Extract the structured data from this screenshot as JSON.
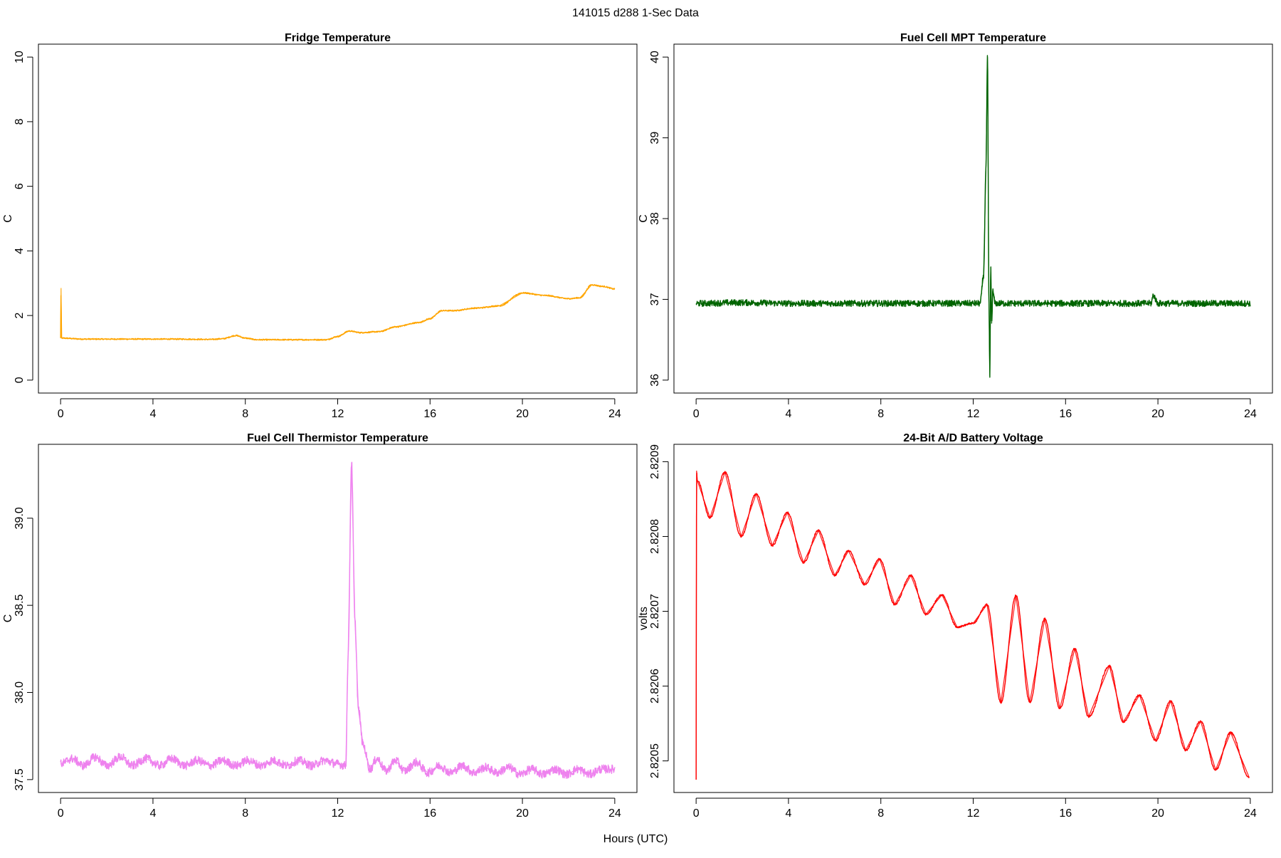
{
  "figure": {
    "title": "141015   d288   1-Sec Data",
    "xlabel": "Hours (UTC)"
  },
  "chart_data": [
    {
      "type": "line",
      "title": "Fridge Temperature",
      "xlabel": "Hours (UTC)",
      "ylabel": "C",
      "color": "#FFA500",
      "xlim": [
        0,
        24
      ],
      "ylim": [
        0,
        10
      ],
      "xticks": [
        0,
        4,
        8,
        12,
        16,
        20,
        24
      ],
      "yticks": [
        0,
        2,
        4,
        6,
        8,
        10
      ],
      "ytick_labels": [
        "0",
        "2",
        "4",
        "6",
        "8",
        "10"
      ],
      "noise": 0.02,
      "x": [
        0,
        0.02,
        0.04,
        1,
        3,
        5,
        6.5,
        7,
        7.6,
        8,
        8.5,
        10,
        11.5,
        12,
        12.5,
        13,
        13.8,
        14.5,
        15.5,
        16,
        16.5,
        17,
        18,
        19,
        20,
        21,
        22,
        22.5,
        23,
        23.5,
        24
      ],
      "y": [
        1.3,
        2.85,
        1.3,
        1.27,
        1.27,
        1.27,
        1.26,
        1.28,
        1.38,
        1.3,
        1.25,
        1.25,
        1.25,
        1.35,
        1.52,
        1.47,
        1.5,
        1.65,
        1.78,
        1.9,
        2.15,
        2.15,
        2.23,
        2.3,
        2.7,
        2.62,
        2.52,
        2.55,
        2.95,
        2.9,
        2.82
      ]
    },
    {
      "type": "line",
      "title": "Fuel Cell MPT Temperature",
      "xlabel": "Hours (UTC)",
      "ylabel": "C",
      "color": "#006400",
      "xlim": [
        0,
        24
      ],
      "ylim": [
        36,
        40
      ],
      "xticks": [
        0,
        4,
        8,
        12,
        16,
        20,
        24
      ],
      "yticks": [
        36,
        37,
        38,
        39,
        40
      ],
      "ytick_labels": [
        "36",
        "37",
        "38",
        "39",
        "40"
      ],
      "noise": 0.04,
      "x": [
        0,
        2,
        4,
        6,
        8,
        10,
        12,
        12.3,
        12.45,
        12.55,
        12.62,
        12.68,
        12.72,
        12.76,
        12.8,
        12.85,
        12.95,
        14,
        16,
        19,
        19.7,
        19.8,
        20,
        22,
        24
      ],
      "y": [
        36.95,
        36.96,
        36.95,
        36.95,
        36.95,
        36.95,
        36.95,
        36.95,
        37.3,
        38.6,
        40.0,
        37.0,
        36.05,
        37.4,
        36.7,
        37.1,
        36.95,
        36.95,
        36.95,
        36.95,
        36.95,
        37.05,
        36.95,
        36.95,
        36.95
      ]
    },
    {
      "type": "line",
      "title": "Fuel Cell Thermistor Temperature",
      "xlabel": "Hours (UTC)",
      "ylabel": "C",
      "color": "#EE82EE",
      "xlim": [
        0,
        24
      ],
      "ylim": [
        37.5,
        39.35
      ],
      "xticks": [
        0,
        4,
        8,
        12,
        16,
        20,
        24
      ],
      "yticks": [
        37.5,
        38.0,
        38.5,
        39.0
      ],
      "ytick_labels": [
        "37.5",
        "38.0",
        "38.5",
        "39.0"
      ],
      "noise": 0.025,
      "x": [
        0,
        0.5,
        1,
        1.5,
        2,
        2.6,
        3.1,
        3.7,
        4.3,
        4.8,
        5.4,
        5.9,
        6.5,
        7,
        7.6,
        8.1,
        8.7,
        9.2,
        9.8,
        10.3,
        10.9,
        11.4,
        12,
        12.35,
        12.45,
        12.6,
        12.75,
        12.9,
        13.1,
        13.4,
        13.7,
        14.1,
        14.5,
        14.9,
        15.4,
        15.9,
        16.4,
        16.9,
        17.4,
        17.9,
        18.4,
        18.9,
        19.4,
        19.9,
        20.4,
        20.9,
        21.4,
        21.9,
        22.4,
        22.9,
        23.4,
        24
      ],
      "y": [
        37.59,
        37.62,
        37.58,
        37.63,
        37.58,
        37.63,
        37.58,
        37.62,
        37.58,
        37.62,
        37.58,
        37.61,
        37.58,
        37.61,
        37.58,
        37.61,
        37.58,
        37.61,
        37.58,
        37.61,
        37.58,
        37.61,
        37.59,
        37.58,
        38.2,
        39.32,
        38.4,
        37.9,
        37.7,
        37.56,
        37.62,
        37.55,
        37.61,
        37.55,
        37.6,
        37.54,
        37.58,
        37.54,
        37.58,
        37.54,
        37.57,
        37.54,
        37.57,
        37.53,
        37.56,
        37.53,
        37.56,
        37.53,
        37.56,
        37.53,
        37.56,
        37.56
      ]
    },
    {
      "type": "line",
      "title": "24-Bit A/D Battery Voltage",
      "xlabel": "Hours (UTC)",
      "ylabel": "volts",
      "color": "#FF0000",
      "xlim": [
        0,
        24
      ],
      "ylim": [
        2.820475,
        2.820906
      ],
      "xticks": [
        0,
        4,
        8,
        12,
        16,
        20,
        24
      ],
      "yticks": [
        2.8205,
        2.8206,
        2.8207,
        2.8208,
        2.8209
      ],
      "ytick_labels": [
        "2.8205",
        "2.8206",
        "2.8207",
        "2.8208",
        "2.8209"
      ],
      "noise": 1.2e-06,
      "x": [
        0,
        0.02,
        0.05,
        0.6,
        1.25,
        1.95,
        2.6,
        3.3,
        3.95,
        4.65,
        5.3,
        6.0,
        6.6,
        7.3,
        7.95,
        8.6,
        9.3,
        9.95,
        10.65,
        11.3,
        12.0,
        12.6,
        13.2,
        13.85,
        14.45,
        15.1,
        15.75,
        16.4,
        17.0,
        17.9,
        18.5,
        19.2,
        19.9,
        20.55,
        21.2,
        21.85,
        22.5,
        23.15,
        23.95
      ],
      "y": [
        2.820475,
        2.820888,
        2.820875,
        2.820825,
        2.820886,
        2.8208,
        2.820857,
        2.820788,
        2.820832,
        2.820765,
        2.820808,
        2.820748,
        2.820781,
        2.820736,
        2.82077,
        2.820709,
        2.820748,
        2.820696,
        2.820722,
        2.820679,
        2.820684,
        2.820709,
        2.820578,
        2.820721,
        2.820578,
        2.82069,
        2.82057,
        2.82065,
        2.820559,
        2.820627,
        2.820552,
        2.820588,
        2.820527,
        2.82058,
        2.820514,
        2.820553,
        2.820488,
        2.820538,
        2.820478
      ]
    }
  ]
}
